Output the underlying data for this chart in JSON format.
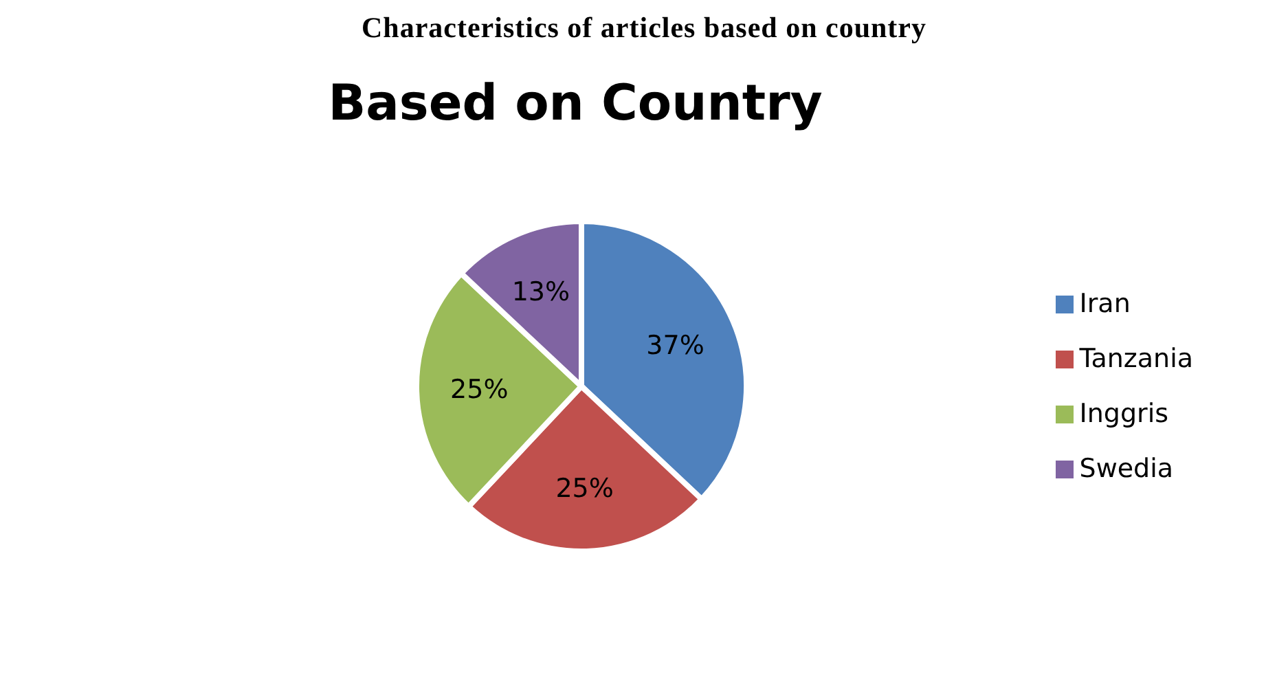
{
  "chart_data": {
    "type": "pie",
    "title": "Characteristics of articles based on country",
    "subtitle": "Based on Country",
    "categories": [
      "Iran",
      "Tanzania",
      "Inggris",
      "Swedia"
    ],
    "values": [
      37,
      25,
      25,
      13
    ],
    "value_labels": [
      "37%",
      "25%",
      "25%",
      "13%"
    ],
    "colors": [
      "#4f81bd",
      "#c0504d",
      "#9bbb59",
      "#8064a2"
    ],
    "legend": "right"
  }
}
